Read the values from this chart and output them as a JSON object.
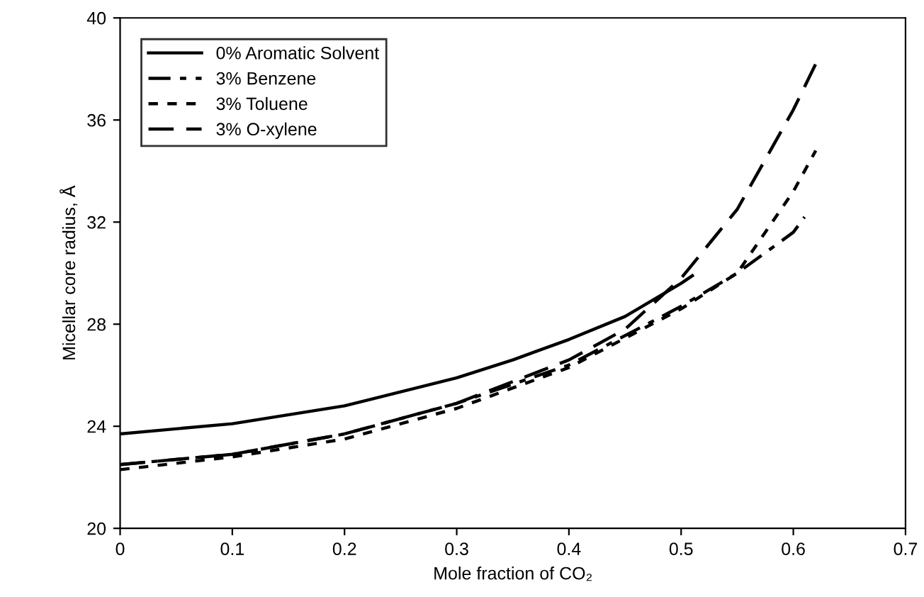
{
  "chart_data": {
    "type": "line",
    "xlabel": "Mole fraction of CO₂",
    "ylabel": "Micellar core radius, Å",
    "xlim": [
      0,
      0.7
    ],
    "xticks": [
      0,
      0.1,
      0.2,
      0.3,
      0.4,
      0.5,
      0.6,
      0.7
    ],
    "ylim": [
      20,
      40
    ],
    "yticks": [
      20,
      24,
      28,
      32,
      36,
      40
    ],
    "grid": false,
    "legend": "top left",
    "marker": "none",
    "series": [
      {
        "name": "0% Aromatic Solvent",
        "color": "#000000",
        "line_style": "solid",
        "x": [
          0,
          0.1,
          0.2,
          0.3,
          0.35,
          0.4,
          0.45,
          0.5,
          0.51
        ],
        "values": [
          23.7,
          24.1,
          24.8,
          25.9,
          26.6,
          27.4,
          28.3,
          29.6,
          29.9
        ]
      },
      {
        "name": "3% Benzene",
        "color": "#000000",
        "line_style": "dashdot",
        "x": [
          0,
          0.1,
          0.2,
          0.3,
          0.4,
          0.5,
          0.55,
          0.6,
          0.61
        ],
        "values": [
          22.5,
          22.9,
          23.7,
          24.9,
          26.4,
          28.7,
          30.0,
          31.6,
          32.2
        ]
      },
      {
        "name": "3% Toluene",
        "color": "#000000",
        "line_style": "dotted",
        "x": [
          0,
          0.1,
          0.2,
          0.3,
          0.4,
          0.5,
          0.55,
          0.6,
          0.62
        ],
        "values": [
          22.3,
          22.8,
          23.5,
          24.7,
          26.3,
          28.6,
          30.0,
          33.2,
          34.8
        ]
      },
      {
        "name": "3% O-xylene",
        "color": "#000000",
        "line_style": "dashed",
        "x": [
          0,
          0.1,
          0.2,
          0.3,
          0.4,
          0.45,
          0.5,
          0.55,
          0.6,
          0.62
        ],
        "values": [
          22.5,
          22.9,
          23.7,
          24.9,
          26.6,
          27.8,
          29.8,
          32.5,
          36.4,
          38.2
        ]
      }
    ]
  }
}
